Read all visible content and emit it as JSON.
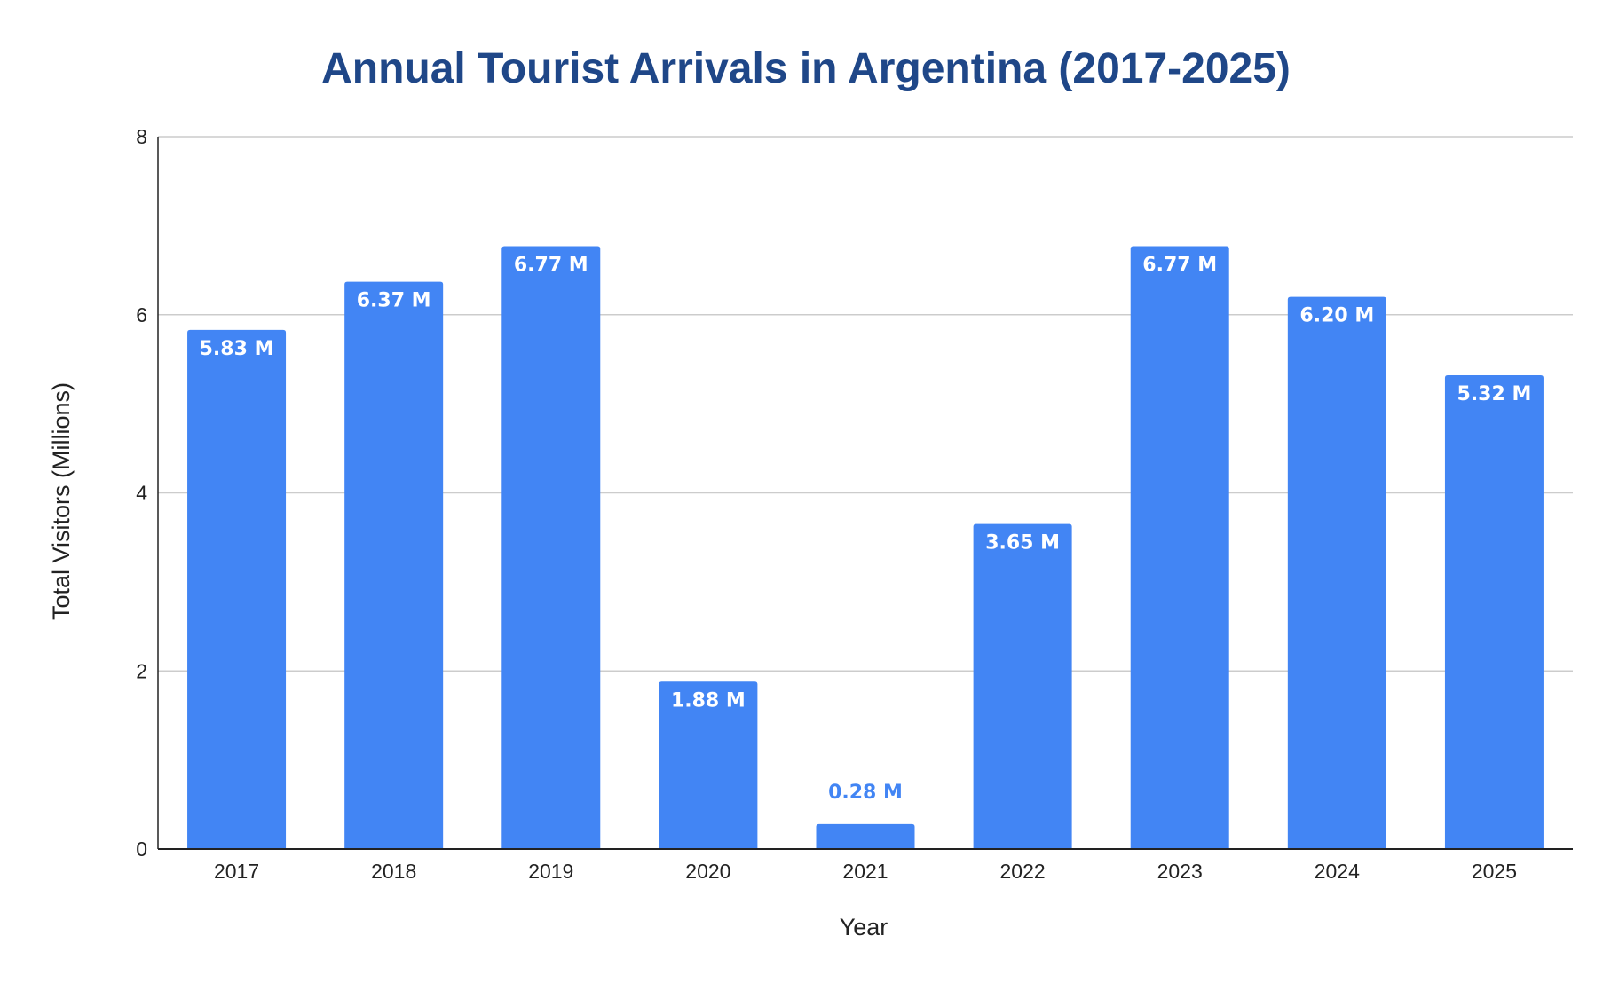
{
  "colors": {
    "bar": "#4285f4",
    "title": "#1f4788",
    "grid": "#cccccc",
    "axis": "#222222",
    "label_inside": "#ffffff",
    "label_outside": "#4285f4"
  },
  "chart_data": {
    "type": "bar",
    "title": "Annual Tourist Arrivals in Argentina (2017-2025)",
    "xlabel": "Year",
    "ylabel": "Total Visitors (Millions)",
    "categories": [
      "2017",
      "2018",
      "2019",
      "2020",
      "2021",
      "2022",
      "2023",
      "2024",
      "2025"
    ],
    "values": [
      5.83,
      6.37,
      6.77,
      1.88,
      0.28,
      3.65,
      6.77,
      6.2,
      5.32
    ],
    "data_labels": [
      "5.83 M",
      "6.37 M",
      "6.77 M",
      "1.88 M",
      "0.28 M",
      "3.65 M",
      "6.77 M",
      "6.20 M",
      "5.32 M"
    ],
    "ylim": [
      0,
      8
    ],
    "yticks": [
      {
        "value": 0,
        "label": "0"
      },
      {
        "value": 2,
        "label": "2"
      },
      {
        "value": 4,
        "label": "4"
      },
      {
        "value": 6,
        "label": "6"
      },
      {
        "value": 8,
        "label": "8"
      }
    ],
    "grid": true,
    "legend": "none"
  }
}
